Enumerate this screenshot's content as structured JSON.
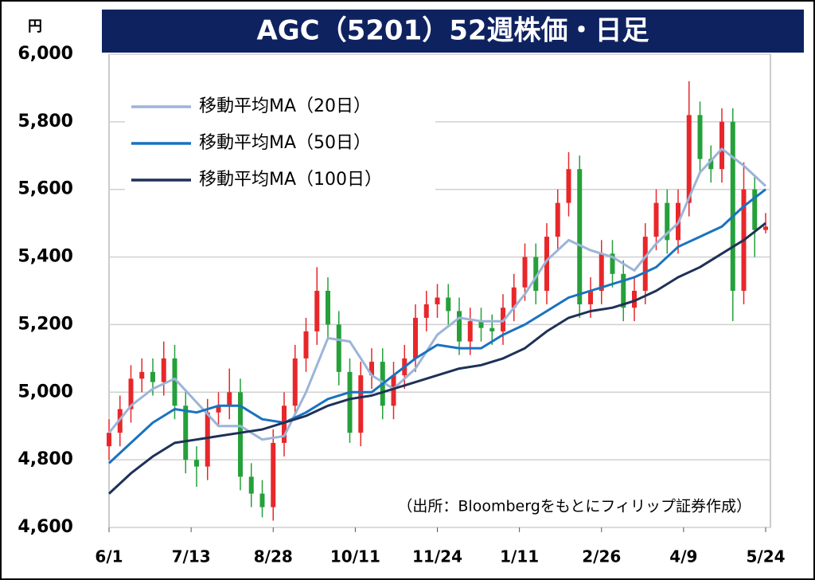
{
  "chart_data": {
    "type": "candlestick",
    "title": "AGC（5201）52週株価・日足",
    "y_unit": "円",
    "source": "（出所：Bloombergをもとにフィリップ証券作成）",
    "ylim": [
      4600,
      6000
    ],
    "yticks": [
      {
        "value": 4600,
        "label": "4,600"
      },
      {
        "value": 4800,
        "label": "4,800"
      },
      {
        "value": 5000,
        "label": "5,000"
      },
      {
        "value": 5200,
        "label": "5,200"
      },
      {
        "value": 5400,
        "label": "5,400"
      },
      {
        "value": 5600,
        "label": "5,600"
      },
      {
        "value": 5800,
        "label": "5,800"
      },
      {
        "value": 6000,
        "label": "6,000"
      }
    ],
    "xlim": [
      0,
      240
    ],
    "xticks": [
      {
        "value": 0,
        "label": "6/1"
      },
      {
        "value": 30,
        "label": "7/13"
      },
      {
        "value": 60,
        "label": "8/28"
      },
      {
        "value": 90,
        "label": "10/11"
      },
      {
        "value": 120,
        "label": "11/24"
      },
      {
        "value": 150,
        "label": "1/11"
      },
      {
        "value": 180,
        "label": "2/26"
      },
      {
        "value": 210,
        "label": "4/9"
      },
      {
        "value": 240,
        "label": "5/24"
      }
    ],
    "grid": true,
    "up_color": "#e8272b",
    "down_color": "#25a03a",
    "candles": {
      "x": [
        0,
        4,
        8,
        12,
        16,
        20,
        24,
        28,
        32,
        36,
        40,
        44,
        48,
        52,
        56,
        60,
        64,
        68,
        72,
        76,
        80,
        84,
        88,
        92,
        96,
        100,
        104,
        108,
        112,
        116,
        120,
        124,
        128,
        132,
        136,
        140,
        144,
        148,
        152,
        156,
        160,
        164,
        168,
        172,
        176,
        180,
        184,
        188,
        192,
        196,
        200,
        204,
        208,
        212,
        216,
        220,
        224,
        228,
        232,
        236,
        240
      ],
      "open": [
        4840,
        4880,
        4950,
        5040,
        5060,
        5030,
        5100,
        4960,
        4800,
        4780,
        4940,
        4960,
        5000,
        4750,
        4700,
        4660,
        4850,
        4960,
        5100,
        5180,
        5300,
        5200,
        5060,
        4880,
        5050,
        5090,
        4960,
        5050,
        5100,
        5220,
        5260,
        5280,
        5240,
        5150,
        5210,
        5190,
        5180,
        5250,
        5310,
        5400,
        5300,
        5460,
        5560,
        5660,
        5260,
        5300,
        5410,
        5350,
        5250,
        5300,
        5460,
        5560,
        5450,
        5560,
        5820,
        5690,
        5660,
        5800,
        5300,
        5600,
        5480
      ],
      "high": [
        4920,
        4990,
        5080,
        5100,
        5100,
        5150,
        5140,
        5000,
        4840,
        4980,
        5000,
        5070,
        5040,
        4790,
        4740,
        4890,
        5000,
        5140,
        5220,
        5370,
        5340,
        5240,
        5100,
        5090,
        5130,
        5130,
        5090,
        5140,
        5260,
        5300,
        5320,
        5320,
        5280,
        5250,
        5250,
        5230,
        5290,
        5350,
        5440,
        5440,
        5500,
        5600,
        5710,
        5700,
        5340,
        5450,
        5450,
        5390,
        5340,
        5500,
        5600,
        5600,
        5600,
        5920,
        5860,
        5730,
        5840,
        5840,
        5680,
        5640,
        5530
      ],
      "low": [
        4800,
        4840,
        4910,
        5000,
        4990,
        4990,
        4920,
        4760,
        4720,
        4740,
        4900,
        4920,
        4710,
        4660,
        4630,
        4620,
        4810,
        4920,
        5060,
        5140,
        5160,
        5020,
        4850,
        4840,
        5010,
        4920,
        4920,
        5010,
        5060,
        5180,
        5220,
        5200,
        5110,
        5110,
        5150,
        5140,
        5140,
        5210,
        5270,
        5260,
        5260,
        5420,
        5520,
        5220,
        5220,
        5260,
        5310,
        5210,
        5210,
        5260,
        5420,
        5410,
        5410,
        5520,
        5650,
        5620,
        5620,
        5210,
        5260,
        5400,
        5470
      ],
      "close": [
        4880,
        4950,
        5040,
        5060,
        5030,
        5100,
        4960,
        4800,
        4780,
        4940,
        4960,
        5000,
        4750,
        4700,
        4660,
        4850,
        4960,
        5100,
        5180,
        5300,
        5200,
        5060,
        4880,
        5050,
        5090,
        4960,
        5050,
        5100,
        5220,
        5260,
        5280,
        5240,
        5150,
        5210,
        5190,
        5180,
        5250,
        5310,
        5400,
        5300,
        5460,
        5560,
        5660,
        5260,
        5300,
        5410,
        5350,
        5250,
        5300,
        5460,
        5560,
        5450,
        5560,
        5820,
        5690,
        5660,
        5800,
        5300,
        5600,
        5480,
        5490
      ]
    },
    "series": [
      {
        "name": "移動平均MA（20日）",
        "color": "#9db4d8",
        "x": [
          0,
          8,
          16,
          24,
          32,
          40,
          48,
          56,
          64,
          72,
          80,
          88,
          96,
          104,
          112,
          120,
          128,
          136,
          144,
          152,
          160,
          168,
          176,
          184,
          192,
          200,
          208,
          216,
          224,
          232,
          240
        ],
        "values": [
          4880,
          4960,
          5010,
          5040,
          4970,
          4900,
          4900,
          4860,
          4870,
          5000,
          5160,
          5150,
          5050,
          5010,
          5070,
          5170,
          5220,
          5210,
          5210,
          5290,
          5390,
          5450,
          5420,
          5400,
          5360,
          5440,
          5500,
          5650,
          5720,
          5670,
          5610
        ]
      },
      {
        "name": "移動平均MA（50日）",
        "color": "#1a72c0",
        "x": [
          0,
          8,
          16,
          24,
          32,
          40,
          48,
          56,
          64,
          72,
          80,
          88,
          96,
          104,
          112,
          120,
          128,
          136,
          144,
          152,
          160,
          168,
          176,
          184,
          192,
          200,
          208,
          216,
          224,
          232,
          240
        ],
        "values": [
          4790,
          4850,
          4910,
          4950,
          4940,
          4960,
          4960,
          4920,
          4910,
          4940,
          4980,
          5000,
          5000,
          5050,
          5100,
          5140,
          5130,
          5130,
          5170,
          5200,
          5240,
          5280,
          5300,
          5320,
          5340,
          5370,
          5430,
          5460,
          5490,
          5550,
          5600
        ]
      },
      {
        "name": "移動平均MA（100日）",
        "color": "#1e3157",
        "x": [
          0,
          8,
          16,
          24,
          32,
          40,
          48,
          56,
          64,
          72,
          80,
          88,
          96,
          104,
          112,
          120,
          128,
          136,
          144,
          152,
          160,
          168,
          176,
          184,
          192,
          200,
          208,
          216,
          224,
          232,
          240
        ],
        "values": [
          4700,
          4760,
          4810,
          4850,
          4860,
          4870,
          4880,
          4890,
          4910,
          4930,
          4960,
          4980,
          4990,
          5010,
          5030,
          5050,
          5070,
          5080,
          5100,
          5130,
          5180,
          5220,
          5240,
          5250,
          5270,
          5300,
          5340,
          5370,
          5410,
          5450,
          5500
        ]
      }
    ]
  }
}
